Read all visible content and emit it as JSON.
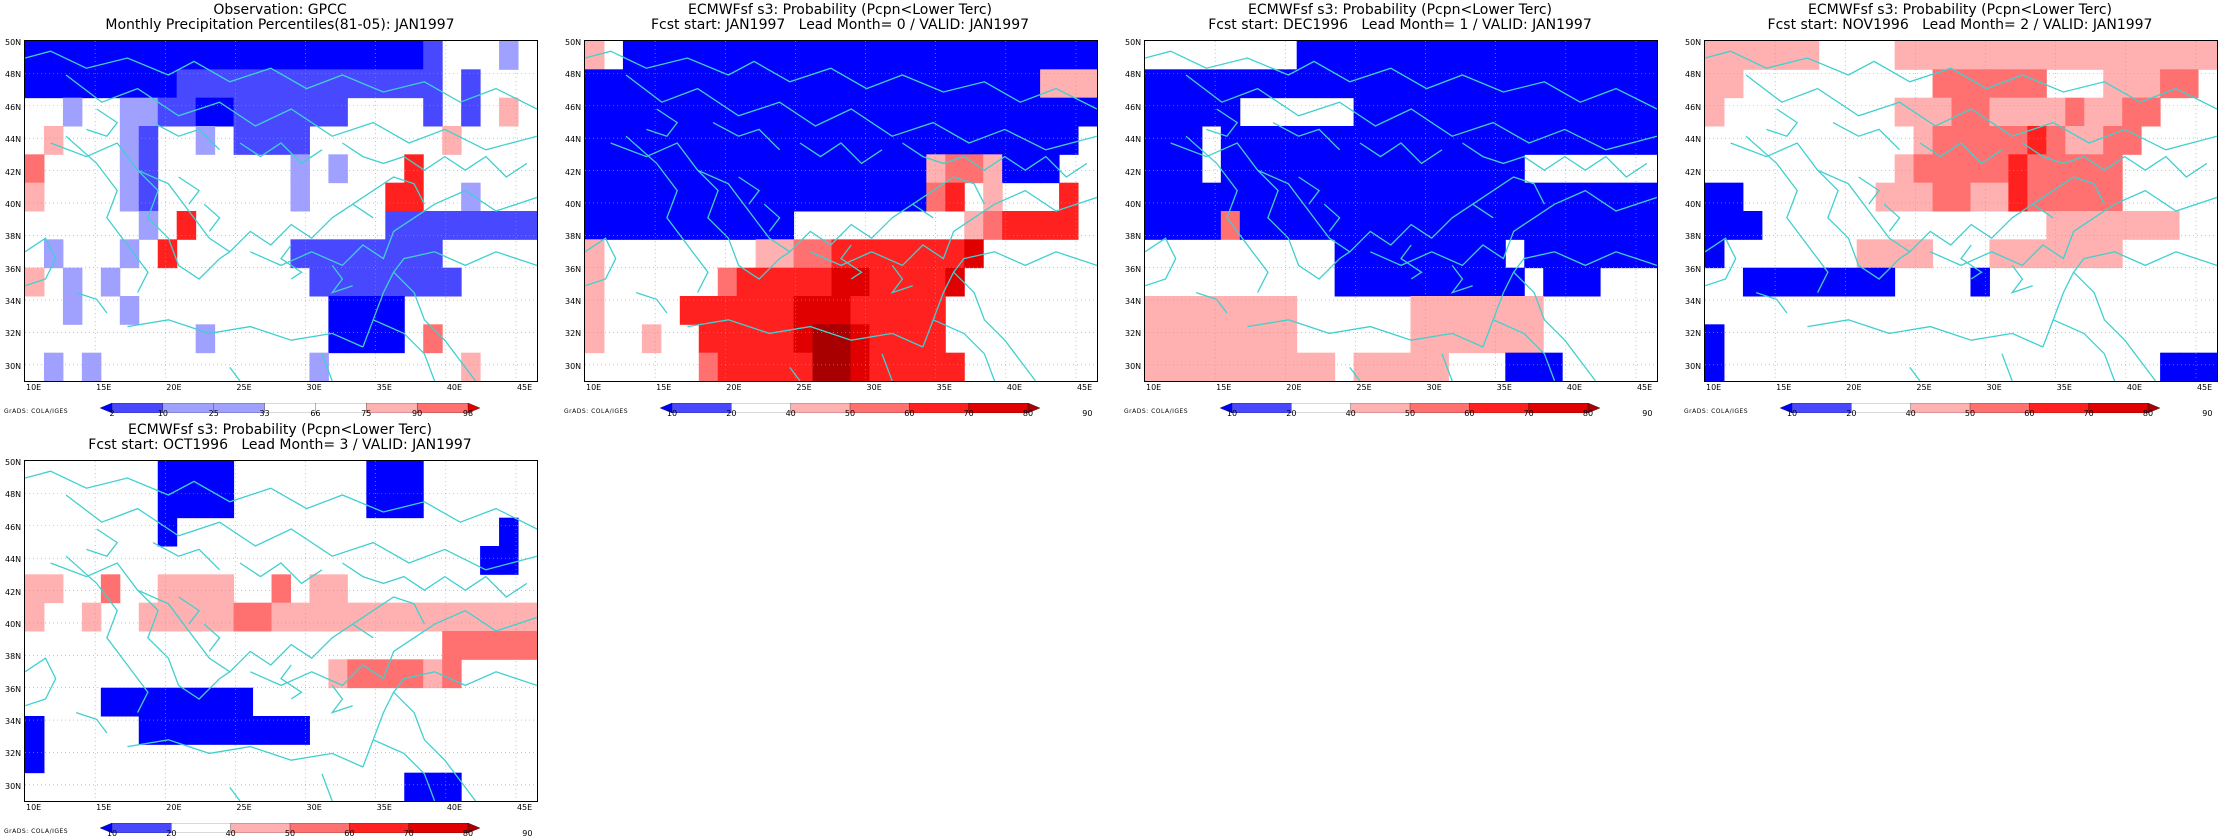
{
  "colors": {
    "b3": "#0000ff",
    "b2": "#4848ff",
    "b1": "#a0a0ff",
    "r1": "#ffb0b0",
    "r2": "#ff7070",
    "r3": "#ff2020",
    "r4": "#e00000",
    "r5": "#a80000",
    "coast": "#40d0d0",
    "frame": "#000000",
    "grid": "#a0a0a0"
  },
  "credit": "GrADS: COLA/IGES",
  "lat_labels": [
    "50N",
    "48N",
    "46N",
    "44N",
    "42N",
    "40N",
    "38N",
    "36N",
    "34N",
    "32N",
    "30N"
  ],
  "lon_labels": [
    "10E",
    "15E",
    "20E",
    "25E",
    "30E",
    "35E",
    "40E",
    "45E"
  ],
  "panels": [
    {
      "title_line1": "Observation: GPCC",
      "title_line2": "Monthly Precipitation Percentiles(81-05): JAN1997",
      "colorbar_labels": [
        "2",
        "10",
        "25",
        "33",
        "66",
        "75",
        "90",
        "98"
      ],
      "colorbar_colors": [
        "b3",
        "b2",
        "b1",
        "b1",
        "w",
        "w",
        "r1",
        "r2",
        "r4"
      ],
      "grid": [
        "3333333333333333333332...1.",
        "3333333322222222222222.2....",
        "..1..112233222222....2.2.r1",
        ".r1...12..1.2222.......r1...",
        "r2....12.......1.1...r3....",
        "r1....12.......1....r3r3..1",
        "......1.r3..........22222222",
        ".1...1.r3......22222222.....",
        "r1.1.1..........22222222....",
        "..1..1..........3333.......r1",
        ".........1......3333.r2.....",
        ".1.1...........1.......r1..."
      ]
    },
    {
      "title_line1": "ECMWFsf s3: Probability (Pcpn<Lower Terc)",
      "title_line2": "Fcst start: JAN1997   Lead Month= 0 / VALID: JAN1997",
      "colorbar_labels": [
        "10",
        "20",
        "40",
        "50",
        "60",
        "70",
        "80",
        "90"
      ],
      "colorbar_colors": [
        "b3",
        "b2",
        "w",
        "r1",
        "r2",
        "r3",
        "r4",
        "r5"
      ]
    },
    {
      "title_line1": "ECMWFsf s3: Probability (Pcpn<Lower Terc)",
      "title_line2": "Fcst start: DEC1996   Lead Month= 1 / VALID: JAN1997",
      "colorbar_labels": [
        "10",
        "20",
        "40",
        "50",
        "60",
        "70",
        "80",
        "90"
      ],
      "colorbar_colors": [
        "b3",
        "b2",
        "w",
        "r1",
        "r2",
        "r3",
        "r4",
        "r5"
      ]
    },
    {
      "title_line1": "ECMWFsf s3: Probability (Pcpn<Lower Terc)",
      "title_line2": "Fcst start: NOV1996   Lead Month= 2 / VALID: JAN1997",
      "colorbar_labels": [
        "10",
        "20",
        "40",
        "50",
        "60",
        "70",
        "80",
        "90"
      ],
      "colorbar_colors": [
        "b3",
        "b2",
        "w",
        "r1",
        "r2",
        "r3",
        "r4",
        "r5"
      ]
    },
    {
      "title_line1": "ECMWFsf s3: Probability (Pcpn<Lower Terc)",
      "title_line2": "Fcst start: OCT1996   Lead Month= 3 / VALID: JAN1997",
      "colorbar_labels": [
        "10",
        "20",
        "40",
        "50",
        "60",
        "70",
        "80",
        "90"
      ],
      "colorbar_colors": [
        "b3",
        "b2",
        "w",
        "r1",
        "r2",
        "r3",
        "r4",
        "r5"
      ]
    }
  ]
}
